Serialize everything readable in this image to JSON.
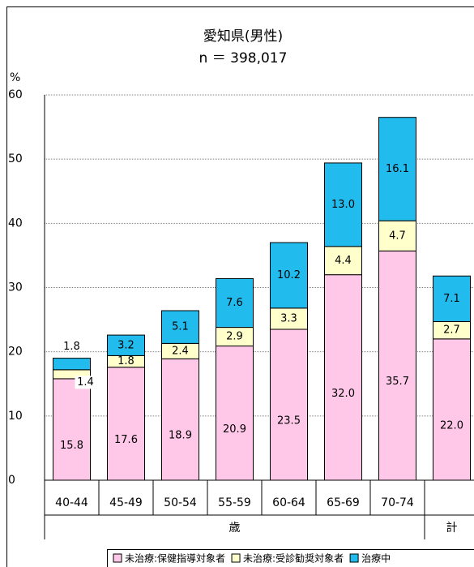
{
  "chart_data": {
    "type": "stacked_bar",
    "title": "愛知県(男性)",
    "subtitle": "n ＝ 398,017",
    "y_label": "%",
    "categories": [
      "40-44",
      "45-49",
      "50-54",
      "55-59",
      "60-64",
      "65-69",
      "70-74",
      null
    ],
    "category_groups": [
      "歳",
      "計"
    ],
    "series": [
      {
        "name": "未治療:保健指導対象者",
        "color": "#ffc8e8",
        "values": [
          15.8,
          17.6,
          18.9,
          20.9,
          23.5,
          32.0,
          35.7,
          22.0
        ],
        "value_labels": [
          "15.8",
          "17.6",
          "18.9",
          "20.9",
          "23.5",
          "32.0",
          "35.7",
          "22.0"
        ]
      },
      {
        "name": "未治療:受診勧奨対象者",
        "color": "#ffffcc",
        "values": [
          1.4,
          1.8,
          2.4,
          2.9,
          3.3,
          4.4,
          4.7,
          2.7
        ],
        "value_labels": [
          "1.4",
          "1.8",
          "2.4",
          "2.9",
          "3.3",
          "4.4",
          "4.7",
          "2.7"
        ]
      },
      {
        "name": "治療中",
        "color": "#22bbee",
        "values": [
          1.8,
          3.2,
          5.1,
          7.6,
          10.2,
          13.0,
          16.1,
          7.1
        ],
        "value_labels": [
          "1.8",
          "3.2",
          "5.1",
          "7.6",
          "10.2",
          "13.0",
          "16.1",
          "7.1"
        ]
      }
    ],
    "ylim": [
      0,
      60
    ],
    "yticks": [
      0,
      10,
      20,
      30,
      40,
      50,
      60
    ],
    "grid": true,
    "legend": "bottom"
  }
}
